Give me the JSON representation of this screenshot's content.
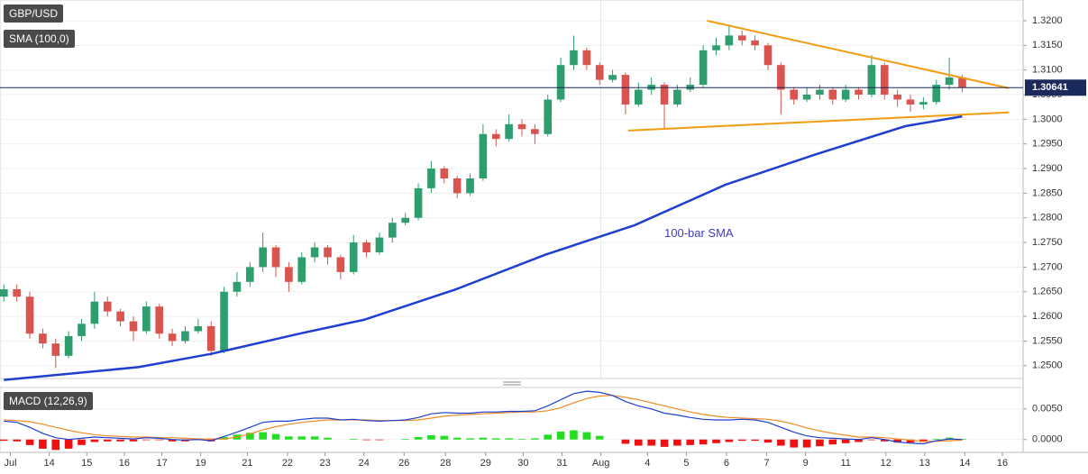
{
  "chart_data": [
    {
      "type": "candlestick",
      "title": "GBP/USD",
      "subtitle": "SMA (100,0)",
      "up_color": "#2e9e6e",
      "down_color": "#d9534f",
      "xlim": [
        -0.3,
        78.7
      ],
      "xticks": [
        {
          "value": 0.5,
          "label": "Jul"
        },
        {
          "value": 3.5,
          "label": "14"
        },
        {
          "value": 6.4,
          "label": "15"
        },
        {
          "value": 9.3,
          "label": "16"
        },
        {
          "value": 12.2,
          "label": "17"
        },
        {
          "value": 15.2,
          "label": "19"
        },
        {
          "value": 18.8,
          "label": "21"
        },
        {
          "value": 21.9,
          "label": "22"
        },
        {
          "value": 24.8,
          "label": "23"
        },
        {
          "value": 27.8,
          "label": "24"
        },
        {
          "value": 30.9,
          "label": "26"
        },
        {
          "value": 34.1,
          "label": "28"
        },
        {
          "value": 37.2,
          "label": "29"
        },
        {
          "value": 40.1,
          "label": "30"
        },
        {
          "value": 43.1,
          "label": "31"
        },
        {
          "value": 46.1,
          "label": "Aug"
        },
        {
          "value": 49.7,
          "label": "4"
        },
        {
          "value": 52.7,
          "label": "5"
        },
        {
          "value": 55.8,
          "label": "6"
        },
        {
          "value": 58.9,
          "label": "7"
        },
        {
          "value": 61.9,
          "label": "9"
        },
        {
          "value": 65.0,
          "label": "11"
        },
        {
          "value": 68.1,
          "label": "12"
        },
        {
          "value": 71.1,
          "label": "13"
        },
        {
          "value": 74.2,
          "label": "14"
        },
        {
          "value": 77.1,
          "label": "16"
        }
      ],
      "ylim": [
        1.2474,
        1.3242
      ],
      "yticks": [
        {
          "value": 1.25,
          "label": "1.2500"
        },
        {
          "value": 1.255,
          "label": "1.2550"
        },
        {
          "value": 1.26,
          "label": "1.2600"
        },
        {
          "value": 1.265,
          "label": "1.2650"
        },
        {
          "value": 1.27,
          "label": "1.2700"
        },
        {
          "value": 1.275,
          "label": "1.2750"
        },
        {
          "value": 1.28,
          "label": "1.2800"
        },
        {
          "value": 1.285,
          "label": "1.2850"
        },
        {
          "value": 1.29,
          "label": "1.2900"
        },
        {
          "value": 1.295,
          "label": "1.2950"
        },
        {
          "value": 1.3,
          "label": "1.3000"
        },
        {
          "value": 1.305,
          "label": "1.3050"
        },
        {
          "value": 1.31,
          "label": "1.3100"
        },
        {
          "value": 1.315,
          "label": "1.3150"
        },
        {
          "value": 1.32,
          "label": "1.3200"
        }
      ],
      "grid": true,
      "open": [
        1.264,
        1.2655,
        1.264,
        1.2565,
        1.2545,
        1.252,
        1.256,
        1.2585,
        1.263,
        1.261,
        1.259,
        1.257,
        1.262,
        1.2565,
        1.255,
        1.257,
        1.258,
        1.253,
        1.265,
        1.267,
        1.27,
        1.274,
        1.27,
        1.267,
        1.272,
        1.274,
        1.272,
        1.269,
        1.275,
        1.273,
        1.276,
        1.279,
        1.28,
        1.286,
        1.29,
        1.288,
        1.285,
        1.288,
        1.297,
        1.296,
        1.299,
        1.298,
        1.297,
        1.304,
        1.311,
        1.314,
        1.311,
        1.308,
        1.309,
        1.303,
        1.306,
        1.307,
        1.303,
        1.306,
        1.307,
        1.314,
        1.315,
        1.317,
        1.316,
        1.315,
        1.311,
        1.306,
        1.304,
        1.305,
        1.306,
        1.304,
        1.306,
        1.305,
        1.311,
        1.305,
        1.304,
        1.303,
        1.3035,
        1.307,
        1.3085
      ],
      "high": [
        1.2665,
        1.2665,
        1.265,
        1.2575,
        1.2555,
        1.257,
        1.2595,
        1.265,
        1.264,
        1.2615,
        1.26,
        1.263,
        1.2625,
        1.2575,
        1.258,
        1.2595,
        1.259,
        1.266,
        1.269,
        1.271,
        1.277,
        1.2745,
        1.271,
        1.273,
        1.275,
        1.2745,
        1.2725,
        1.2765,
        1.2755,
        1.277,
        1.28,
        1.281,
        1.287,
        1.2915,
        1.2905,
        1.2885,
        1.289,
        1.299,
        1.298,
        1.301,
        1.3,
        1.299,
        1.305,
        1.3125,
        1.317,
        1.3145,
        1.3115,
        1.31,
        1.3095,
        1.3075,
        1.3085,
        1.3075,
        1.307,
        1.3085,
        1.315,
        1.3165,
        1.319,
        1.318,
        1.317,
        1.3155,
        1.3115,
        1.3065,
        1.3065,
        1.307,
        1.3065,
        1.307,
        1.3065,
        1.313,
        1.3115,
        1.306,
        1.305,
        1.3045,
        1.308,
        1.3125,
        1.309
      ],
      "low": [
        1.263,
        1.263,
        1.2555,
        1.2535,
        1.2495,
        1.2515,
        1.255,
        1.2575,
        1.26,
        1.258,
        1.255,
        1.2565,
        1.2555,
        1.254,
        1.2545,
        1.2565,
        1.252,
        1.2525,
        1.264,
        1.266,
        1.269,
        1.268,
        1.265,
        1.2665,
        1.271,
        1.2705,
        1.2675,
        1.2685,
        1.272,
        1.2725,
        1.275,
        1.2785,
        1.2795,
        1.285,
        1.287,
        1.284,
        1.2845,
        1.2875,
        1.2945,
        1.2955,
        1.2965,
        1.295,
        1.2965,
        1.3035,
        1.31,
        1.31,
        1.307,
        1.3075,
        1.301,
        1.3025,
        1.305,
        1.298,
        1.3025,
        1.3055,
        1.3065,
        1.313,
        1.314,
        1.315,
        1.314,
        1.31,
        1.301,
        1.303,
        1.3035,
        1.304,
        1.303,
        1.3035,
        1.304,
        1.3045,
        1.304,
        1.3025,
        1.3015,
        1.302,
        1.303,
        1.306,
        1.3055
      ],
      "close": [
        1.2655,
        1.264,
        1.2565,
        1.2545,
        1.252,
        1.256,
        1.2585,
        1.263,
        1.261,
        1.259,
        1.257,
        1.262,
        1.2565,
        1.255,
        1.257,
        1.258,
        1.253,
        1.265,
        1.267,
        1.27,
        1.274,
        1.27,
        1.267,
        1.272,
        1.274,
        1.272,
        1.269,
        1.275,
        1.273,
        1.276,
        1.279,
        1.28,
        1.286,
        1.29,
        1.288,
        1.285,
        1.288,
        1.297,
        1.296,
        1.299,
        1.298,
        1.297,
        1.304,
        1.311,
        1.314,
        1.311,
        1.308,
        1.309,
        1.303,
        1.306,
        1.307,
        1.303,
        1.306,
        1.307,
        1.314,
        1.315,
        1.317,
        1.316,
        1.315,
        1.311,
        1.306,
        1.304,
        1.305,
        1.306,
        1.304,
        1.306,
        1.305,
        1.311,
        1.305,
        1.304,
        1.303,
        1.3035,
        1.307,
        1.3085,
        1.3064
      ],
      "sma": {
        "color": "#1f3fd0",
        "x": [
          0,
          10.4,
          16,
          23,
          27.8,
          34.8,
          41.8,
          48.7,
          55.7,
          62.6,
          69.6,
          74
        ],
        "values": [
          1.2471,
          1.2497,
          1.2524,
          1.2566,
          1.2593,
          1.2654,
          1.2725,
          1.2785,
          1.2867,
          1.2928,
          1.2986,
          1.3006
        ]
      },
      "annotation": "100-bar SMA",
      "trendlines": [
        {
          "color": "#f39c12",
          "x": [
            54.3,
            77.6
          ],
          "values": [
            1.32,
            1.3063
          ]
        },
        {
          "color": "#f39c12",
          "x": [
            48.2,
            77.6
          ],
          "values": [
            1.2977,
            1.3014
          ]
        }
      ],
      "last_price": {
        "value": 1.30641,
        "label": "1.30641"
      }
    },
    {
      "type": "macd",
      "title": "MACD (12,26,9)",
      "ylim": [
        -0.0021,
        0.0085
      ],
      "yticks": [
        {
          "value": 0.005,
          "label": "0.0050"
        },
        {
          "value": 0,
          "label": "0.0000"
        }
      ],
      "macd_color": "#1f3fd0",
      "signal_color": "#f08c24",
      "hist_up_color": "#22dd22",
      "hist_down_color": "#ee1111",
      "macd": [
        0.003,
        0.0028,
        0.002,
        0.001,
        0.0003,
        0.0,
        0.0002,
        0.0004,
        0.0003,
        0.0002,
        0.0001,
        0.0003,
        0.0002,
        0.0,
        -0.0001,
        0.0,
        -0.0002,
        0.0005,
        0.0012,
        0.002,
        0.0028,
        0.003,
        0.003,
        0.0033,
        0.0035,
        0.0035,
        0.0032,
        0.0033,
        0.0031,
        0.003,
        0.0031,
        0.0032,
        0.0036,
        0.0042,
        0.0044,
        0.0043,
        0.0043,
        0.0045,
        0.0045,
        0.0046,
        0.0046,
        0.0047,
        0.0055,
        0.0065,
        0.0075,
        0.0079,
        0.0077,
        0.0072,
        0.0062,
        0.0055,
        0.005,
        0.0043,
        0.004,
        0.0036,
        0.0033,
        0.0032,
        0.0032,
        0.0033,
        0.0032,
        0.0028,
        0.002,
        0.0012,
        0.0006,
        0.0003,
        0.0002,
        0.0001,
        0.0,
        0.0003,
        0.0,
        -0.0004,
        -0.0006,
        -0.0007,
        -0.0002,
        0.0001,
        0.0
      ],
      "signal": [
        0.0032,
        0.0031,
        0.0029,
        0.0025,
        0.002,
        0.0015,
        0.0011,
        0.0008,
        0.0006,
        0.0005,
        0.0004,
        0.0004,
        0.0003,
        0.0003,
        0.0002,
        0.0001,
        0.0001,
        0.0001,
        0.0004,
        0.0009,
        0.0016,
        0.0021,
        0.0025,
        0.0028,
        0.003,
        0.0032,
        0.0032,
        0.0032,
        0.0032,
        0.0031,
        0.0031,
        0.0031,
        0.0032,
        0.0035,
        0.0038,
        0.004,
        0.0041,
        0.0042,
        0.0043,
        0.0044,
        0.0045,
        0.0045,
        0.0047,
        0.0052,
        0.006,
        0.0067,
        0.0071,
        0.0072,
        0.0069,
        0.0065,
        0.006,
        0.0055,
        0.005,
        0.0045,
        0.0041,
        0.0038,
        0.0036,
        0.0035,
        0.0034,
        0.0033,
        0.003,
        0.0025,
        0.0019,
        0.0014,
        0.001,
        0.0007,
        0.0004,
        0.0004,
        0.0003,
        0.0001,
        -0.0001,
        -0.0003,
        -0.0003,
        -0.0002,
        -0.0001
      ],
      "histogram": [
        -0.0002,
        -0.0003,
        -0.0009,
        -0.0015,
        -0.0017,
        -0.0015,
        -0.0009,
        -0.0004,
        -0.0003,
        -0.0003,
        -0.0003,
        -0.0001,
        -0.0001,
        -0.0003,
        -0.0003,
        -0.0001,
        -0.0003,
        0.0004,
        0.0008,
        0.0011,
        0.0012,
        0.0009,
        0.0005,
        0.0005,
        0.0005,
        0.0003,
        0.0,
        0.0001,
        -0.0001,
        -0.0001,
        0.0,
        0.0001,
        0.0004,
        0.0007,
        0.0006,
        0.0003,
        0.0002,
        0.0003,
        0.0002,
        0.0002,
        0.0001,
        0.0002,
        0.0008,
        0.0013,
        0.0015,
        0.0012,
        0.0006,
        0.0,
        -0.0007,
        -0.001,
        -0.001,
        -0.0012,
        -0.001,
        -0.0009,
        -0.0008,
        -0.0006,
        -0.0004,
        -0.0002,
        -0.0002,
        -0.0005,
        -0.001,
        -0.0013,
        -0.0013,
        -0.0011,
        -0.0008,
        -0.0006,
        -0.0004,
        -0.0001,
        -0.0003,
        -0.0005,
        -0.0005,
        -0.0004,
        0.0001,
        0.0003,
        0.0001
      ]
    }
  ]
}
